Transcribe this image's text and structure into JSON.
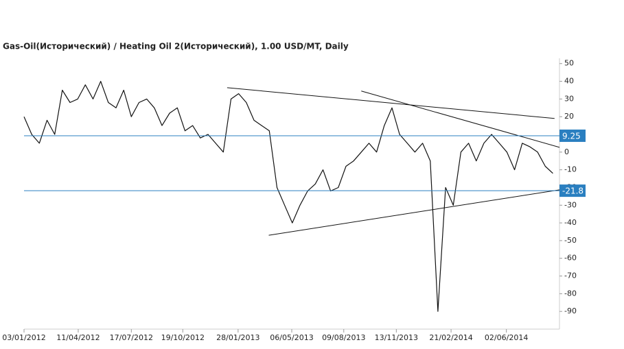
{
  "chart_data": {
    "type": "line",
    "title": "Gas-Oil(Исторический) / Heating Oil 2(Исторический), 1.00 USD/MT, Daily",
    "x": [
      "03/01/2012",
      "17/01/2012",
      "31/01/2012",
      "14/02/2012",
      "28/02/2012",
      "13/03/2012",
      "27/03/2012",
      "10/04/2012",
      "24/04/2012",
      "08/05/2012",
      "22/05/2012",
      "05/06/2012",
      "19/06/2012",
      "03/07/2012",
      "17/07/2012",
      "31/07/2012",
      "14/08/2012",
      "28/08/2012",
      "11/09/2012",
      "25/09/2012",
      "09/10/2012",
      "23/10/2012",
      "06/11/2012",
      "20/11/2012",
      "04/12/2012",
      "18/12/2012",
      "01/01/2013",
      "15/01/2013",
      "29/01/2013",
      "12/02/2013",
      "26/02/2013",
      "12/03/2013",
      "26/03/2013",
      "09/04/2013",
      "23/04/2013",
      "07/05/2013",
      "21/05/2013",
      "04/06/2013",
      "18/06/2013",
      "02/07/2013",
      "16/07/2013",
      "30/07/2013",
      "13/08/2013",
      "27/08/2013",
      "10/09/2013",
      "24/09/2013",
      "08/10/2013",
      "22/10/2013",
      "05/11/2013",
      "19/11/2013",
      "03/12/2013",
      "17/12/2013",
      "31/12/2013",
      "14/01/2014",
      "28/01/2014",
      "11/02/2014",
      "25/02/2014",
      "11/03/2014",
      "25/03/2014",
      "08/04/2014",
      "22/04/2014",
      "06/05/2014",
      "20/05/2014",
      "03/06/2014",
      "17/06/2014",
      "01/07/2014",
      "15/07/2014",
      "29/07/2014",
      "12/08/2014",
      "26/08/2014"
    ],
    "series": [
      {
        "color": "#111111",
        "values": [
          20,
          10,
          5,
          18,
          10,
          35,
          28,
          30,
          38,
          30,
          40,
          28,
          25,
          35,
          20,
          28,
          30,
          25,
          15,
          22,
          25,
          12,
          15,
          8,
          10,
          5,
          0,
          30,
          33,
          28,
          18,
          15,
          12,
          -20,
          -30,
          -40,
          -30,
          -22,
          -18,
          -10,
          -22,
          -20,
          -8,
          -5,
          0,
          5,
          0,
          15,
          25,
          10,
          5,
          0,
          5,
          -5,
          -90,
          -20,
          -30,
          0,
          5,
          -5,
          5,
          10,
          5,
          0,
          -10,
          5,
          3,
          0,
          -8,
          -12
        ]
      }
    ],
    "xlim": [
      "03/01/2012",
      "07/09/2014"
    ],
    "xticks": [
      "03/01/2012",
      "11/04/2012",
      "17/07/2012",
      "19/10/2012",
      "28/01/2013",
      "06/05/2013",
      "09/08/2013",
      "13/11/2013",
      "21/02/2014",
      "02/06/2014"
    ],
    "ylim": [
      -100,
      53
    ],
    "yticks": [
      50,
      40,
      30,
      20,
      10,
      0,
      -10,
      -20,
      -30,
      -40,
      -50,
      -60,
      -70,
      -80,
      -90
    ],
    "hlines": {
      "color": "#2a7fc0",
      "values": [
        9.25,
        -21.8
      ]
    },
    "trendlines": [
      [
        [
          "08/01/2013",
          36.4
        ],
        [
          "29/08/2014",
          19
        ]
      ],
      [
        [
          "10/09/2013",
          34.5
        ],
        [
          "07/09/2014",
          2.7
        ]
      ],
      [
        [
          "25/03/2013",
          -47
        ],
        [
          "07/09/2014",
          -21.3
        ]
      ]
    ]
  }
}
